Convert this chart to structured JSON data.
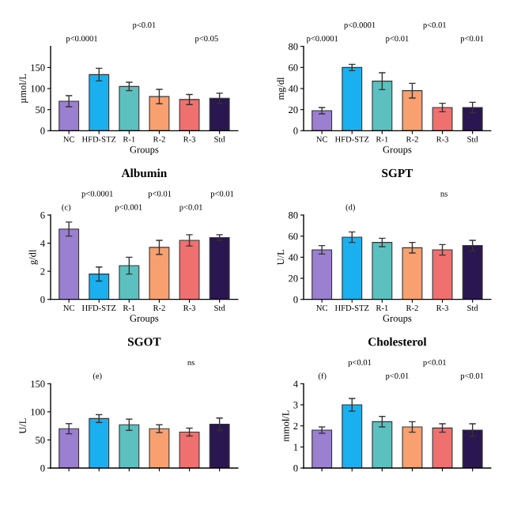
{
  "chart_data": [
    {
      "type": "bar",
      "xlabel": "Groups",
      "ylabel": "µmol/L",
      "categories": [
        "NC",
        "HFD-STZ",
        "R-1",
        "R-2",
        "R-3",
        "Std"
      ],
      "values": [
        70,
        133,
        105,
        81,
        74,
        77
      ],
      "errors": [
        13,
        15,
        10,
        17,
        12,
        12
      ],
      "colors": [
        "#9b7fd0",
        "#1ab0f0",
        "#5cc0c0",
        "#f9a070",
        "#f07070",
        "#2a1650"
      ],
      "ylim": [
        0,
        200
      ],
      "yticks": [
        0,
        50,
        100,
        150
      ],
      "annotations": [
        "p<0.0001",
        "p<0.01",
        "p<0.05"
      ]
    },
    {
      "type": "bar",
      "xlabel": "Groups",
      "ylabel": "mg/dl",
      "categories": [
        "NC",
        "HFD-STZ",
        "R-1",
        "R-2",
        "R-3",
        "Std"
      ],
      "values": [
        19,
        60,
        47,
        38,
        22,
        22
      ],
      "errors": [
        3,
        3,
        8,
        7,
        4,
        5
      ],
      "colors": [
        "#9b7fd0",
        "#1ab0f0",
        "#5cc0c0",
        "#f9a070",
        "#f07070",
        "#2a1650"
      ],
      "ylim": [
        0,
        80
      ],
      "yticks": [
        0,
        20,
        40,
        60,
        80
      ],
      "annotations": [
        "p<0.0001",
        "p<0.0001",
        "p<0.01",
        "p<0.01",
        "p<0.01"
      ]
    },
    {
      "type": "bar",
      "title": "Albumin",
      "xlabel": "Groups",
      "ylabel": "g/dl",
      "categories": [
        "NC",
        "HFD-STZ",
        "R-1",
        "R-2",
        "R-3",
        "Std"
      ],
      "values": [
        5.0,
        1.8,
        2.4,
        3.7,
        4.2,
        4.4
      ],
      "errors": [
        0.5,
        0.5,
        0.6,
        0.5,
        0.4,
        0.2
      ],
      "colors": [
        "#9b7fd0",
        "#1ab0f0",
        "#5cc0c0",
        "#f9a070",
        "#f07070",
        "#2a1650"
      ],
      "ylim": [
        0,
        6
      ],
      "yticks": [
        0,
        2,
        4,
        6
      ],
      "annotations": [
        "(c)",
        "p<0.0001",
        "p<0.001",
        "p<0.01",
        "p<0.01",
        "p<0.01"
      ]
    },
    {
      "type": "bar",
      "title": "SGPT",
      "xlabel": "Groups",
      "ylabel": "U/L",
      "categories": [
        "NC",
        "HFD-STZ",
        "R-1",
        "R-2",
        "R-3",
        "Std"
      ],
      "values": [
        47,
        59,
        54,
        49,
        47,
        51
      ],
      "errors": [
        4,
        5,
        4,
        5,
        5,
        5
      ],
      "colors": [
        "#9b7fd0",
        "#1ab0f0",
        "#5cc0c0",
        "#f9a070",
        "#f07070",
        "#2a1650"
      ],
      "ylim": [
        0,
        80
      ],
      "yticks": [
        0,
        20,
        40,
        60,
        80
      ],
      "annotations": [
        "(d)",
        "ns"
      ]
    },
    {
      "type": "bar",
      "title": "SGOT",
      "ylabel": "U/L",
      "categories": [
        null,
        null,
        null,
        null,
        null,
        null
      ],
      "values": [
        70,
        88,
        77,
        70,
        64,
        78
      ],
      "errors": [
        9,
        7,
        10,
        7,
        7,
        11
      ],
      "colors": [
        "#9b7fd0",
        "#1ab0f0",
        "#5cc0c0",
        "#f9a070",
        "#f07070",
        "#2a1650"
      ],
      "ylim": [
        0,
        150
      ],
      "yticks": [
        0,
        50,
        100,
        150
      ],
      "annotations": [
        "(e)",
        "ns"
      ]
    },
    {
      "type": "bar",
      "title": "Cholesterol",
      "ylabel": "mmol/L",
      "categories": [
        null,
        null,
        null,
        null,
        null,
        null
      ],
      "values": [
        1.8,
        3.0,
        2.2,
        1.95,
        1.9,
        1.8
      ],
      "errors": [
        0.15,
        0.3,
        0.25,
        0.25,
        0.2,
        0.3
      ],
      "colors": [
        "#9b7fd0",
        "#1ab0f0",
        "#5cc0c0",
        "#f9a070",
        "#f07070",
        "#2a1650"
      ],
      "ylim": [
        0,
        4
      ],
      "yticks": [
        0,
        1,
        2,
        3,
        4
      ],
      "annotations": [
        "(f)",
        "p<0.01",
        "p<0.01",
        "p<0.01",
        "p<0.01"
      ]
    }
  ]
}
